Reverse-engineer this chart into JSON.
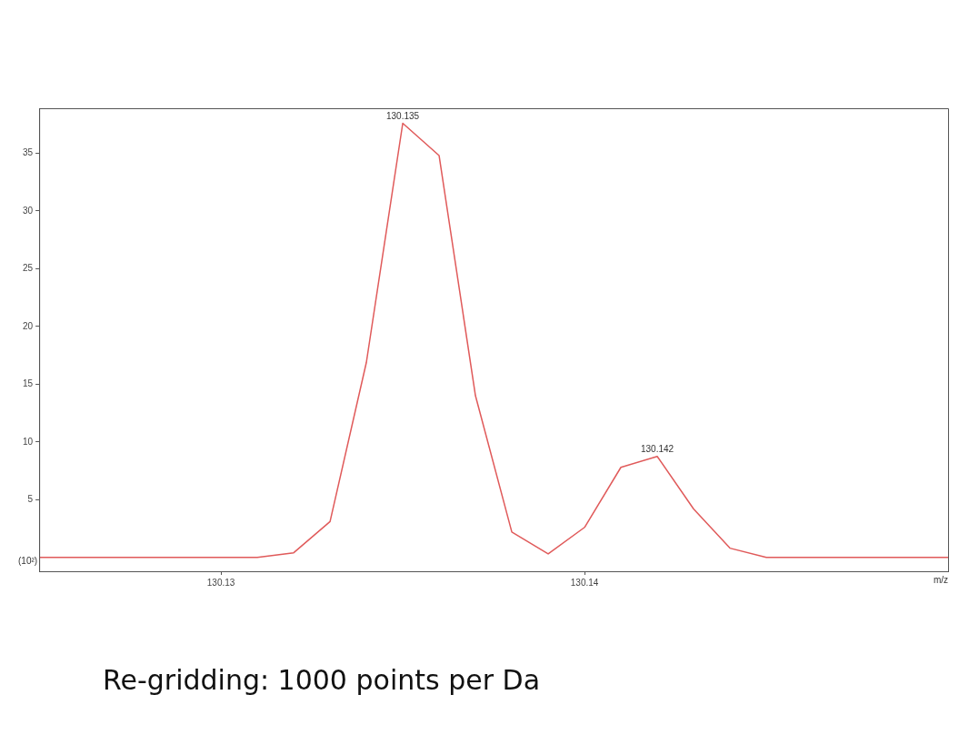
{
  "chart_data": {
    "type": "line",
    "xlabel": "m/z",
    "ylabel": "(10²)",
    "x": [
      130.125,
      130.126,
      130.127,
      130.128,
      130.129,
      130.13,
      130.131,
      130.132,
      130.133,
      130.134,
      130.135,
      130.136,
      130.137,
      130.138,
      130.139,
      130.14,
      130.141,
      130.142,
      130.143,
      130.144,
      130.145,
      130.146,
      130.147,
      130.148,
      130.149,
      130.15
    ],
    "series": [
      {
        "color": "#e05a5a",
        "values": [
          0,
          0,
          0,
          0,
          0,
          0,
          0,
          0.4,
          3.1,
          16.9,
          37.6,
          34.8,
          14.0,
          2.2,
          0.3,
          2.6,
          7.8,
          8.75,
          4.2,
          0.8,
          0,
          0,
          0,
          0,
          0,
          0
        ]
      }
    ],
    "xlim": [
      130.125,
      130.15
    ],
    "xticks": [
      130.13,
      130.14
    ],
    "ylim": [
      -1.2,
      38.9
    ],
    "yticks": [
      5,
      10,
      15,
      20,
      25,
      30,
      35
    ],
    "grid": false,
    "legend": false,
    "marker": "none",
    "line_style": "solid",
    "annotations": [
      {
        "text": "130.135",
        "x": 130.135,
        "y": 37.6
      },
      {
        "text": "130.142",
        "x": 130.142,
        "y": 8.75
      },
      "Re-gridding: 1000 points per Da"
    ]
  }
}
